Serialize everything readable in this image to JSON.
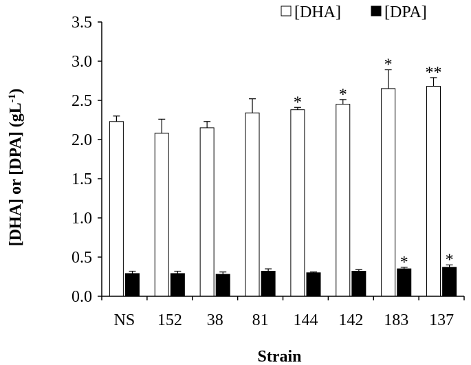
{
  "chart_data": {
    "type": "bar",
    "title": "",
    "xlabel": "Strain",
    "ylabel": "[DHA] or [DPA] (gL",
    "ylabel_superscript": "-1",
    "ylabel_suffix": ")",
    "ylim": [
      0,
      3.5
    ],
    "ytick_step": 0.5,
    "ytick_labels": [
      "0.0",
      "0.5",
      "1.0",
      "1.5",
      "2.0",
      "2.5",
      "3.0",
      "3.5"
    ],
    "grid": false,
    "legend_position": "top-right",
    "categories": [
      "NS",
      "152",
      "38",
      "81",
      "144",
      "142",
      "183",
      "137"
    ],
    "series": [
      {
        "name": "[DHA]",
        "fill": "#ffffff",
        "stroke": "#000000",
        "values": [
          2.23,
          2.08,
          2.15,
          2.34,
          2.38,
          2.45,
          2.65,
          2.68
        ],
        "errors": [
          0.07,
          0.18,
          0.08,
          0.18,
          0.03,
          0.06,
          0.24,
          0.11
        ],
        "significance": [
          "",
          "",
          "",
          "",
          "*",
          "*",
          "*",
          "**"
        ]
      },
      {
        "name": "[DPA]",
        "fill": "#000000",
        "stroke": "#000000",
        "values": [
          0.29,
          0.29,
          0.28,
          0.32,
          0.3,
          0.32,
          0.35,
          0.37
        ],
        "errors": [
          0.03,
          0.03,
          0.03,
          0.03,
          0.01,
          0.02,
          0.02,
          0.03
        ],
        "significance": [
          "",
          "",
          "",
          "",
          "",
          "",
          "*",
          "*"
        ]
      }
    ]
  }
}
